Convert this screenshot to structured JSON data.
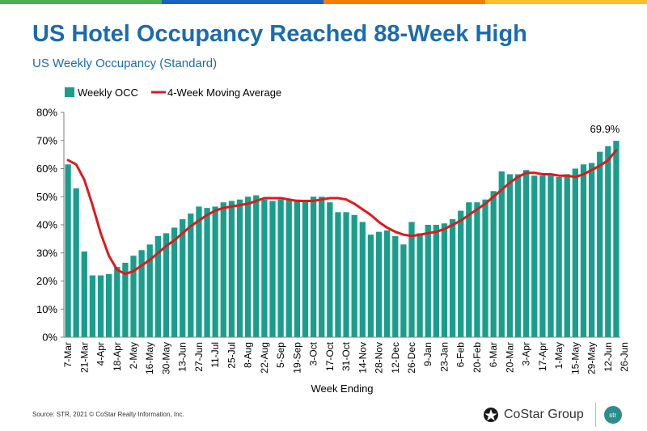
{
  "header": {
    "title": "US Hotel Occupancy Reached 88-Week High",
    "subtitle": "US Weekly Occupancy (Standard)"
  },
  "footer": {
    "source": "Source: STR, 2021 © CoStar Realty Information, Inc.",
    "costar_logo_text": "CoStar Group",
    "str_logo_text": "str"
  },
  "colors": {
    "bar": "#1a9e8c",
    "line": "#e3171c",
    "title": "#1b6bb0",
    "top_bar": [
      "#4caf50",
      "#1565c0",
      "#f57c00",
      "#fbc02d"
    ]
  },
  "chart_data": {
    "type": "bar",
    "title": "",
    "xlabel": "Week Ending",
    "ylabel": "",
    "ylim": [
      0,
      80
    ],
    "y_ticks": [
      "0%",
      "10%",
      "20%",
      "30%",
      "40%",
      "50%",
      "60%",
      "70%",
      "80%"
    ],
    "grid": false,
    "legend": "top-left",
    "x_tick_labels": [
      "7-Mar",
      "21-Mar",
      "4-Apr",
      "18-Apr",
      "2-May",
      "16-May",
      "30-May",
      "13-Jun",
      "27-Jun",
      "11-Jul",
      "25-Jul",
      "8-Aug",
      "22-Aug",
      "5-Sep",
      "19-Sep",
      "3-Oct",
      "17-Oct",
      "31-Oct",
      "14-Nov",
      "28-Nov",
      "12-Dec",
      "26-Dec",
      "9-Jan",
      "23-Jan",
      "6-Feb",
      "20-Feb",
      "6-Mar",
      "20-Mar",
      "3-Apr",
      "17-Apr",
      "1-May",
      "15-May",
      "29-May",
      "12-Jun",
      "26-Jun"
    ],
    "annotation": "69.9%",
    "series": [
      {
        "name": "Weekly OCC",
        "type": "bar",
        "values": [
          61.5,
          53,
          30.5,
          22,
          22,
          22.5,
          25,
          26.5,
          29,
          31,
          33,
          36,
          37,
          39,
          42,
          44,
          46.5,
          46,
          46.5,
          48,
          48.5,
          49,
          50,
          50.5,
          49,
          48.5,
          49,
          49,
          49,
          48.5,
          50,
          50,
          48,
          44.5,
          44.5,
          43.5,
          41,
          36.5,
          37.5,
          38,
          36,
          33,
          41,
          37,
          40,
          40,
          40.5,
          42,
          45,
          48,
          48,
          49,
          52,
          59,
          58,
          58,
          59.5,
          57.5,
          57.5,
          57.5,
          57,
          58,
          60,
          61.5,
          62,
          66,
          68,
          69.9
        ]
      },
      {
        "name": "4-Week Moving Average",
        "type": "line",
        "values": [
          63,
          61.5,
          56,
          47,
          37,
          29,
          24,
          22.5,
          23.5,
          25.5,
          27.5,
          30,
          32.5,
          34.5,
          37,
          39.5,
          41.5,
          43.5,
          45,
          46,
          46.5,
          47,
          47.5,
          48.5,
          49.5,
          49.5,
          49.5,
          49,
          48.5,
          48.5,
          48.5,
          49,
          49.5,
          49.5,
          49,
          47.5,
          45.5,
          43.5,
          41,
          39,
          37.5,
          36.5,
          36,
          36.5,
          37,
          37.5,
          38.5,
          40,
          41.5,
          43.5,
          45.5,
          47.5,
          50,
          52.5,
          55,
          57,
          58.5,
          58.5,
          58,
          58,
          57.5,
          57.5,
          57,
          58,
          59.5,
          61,
          63,
          66.5
        ]
      }
    ]
  }
}
